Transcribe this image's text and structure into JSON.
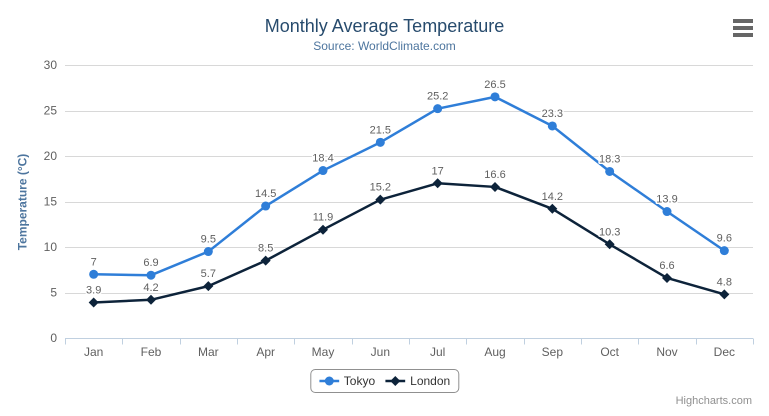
{
  "chart": {
    "title": "Monthly Average Temperature",
    "subtitle": "Source: WorldClimate.com",
    "credits": "Highcharts.com",
    "icons": {
      "context_menu": "hamburger-menu-icon"
    },
    "colors": {
      "title": "#274b6d",
      "subtitle": "#4d759e",
      "axis_title": "#4d759e",
      "axis_labels": "#606060",
      "data_labels": "#606060",
      "grid": "#d8d8d8",
      "axis_line": "#c0d0e0",
      "legend_border": "#909090",
      "legend_text": "#333333",
      "credits_text": "#909090",
      "menu_icon": "#666666",
      "background": "#ffffff"
    }
  },
  "chart_data": {
    "type": "line",
    "title": "Monthly Average Temperature",
    "subtitle": "Source: WorldClimate.com",
    "categories": [
      "Jan",
      "Feb",
      "Mar",
      "Apr",
      "May",
      "Jun",
      "Jul",
      "Aug",
      "Sep",
      "Oct",
      "Nov",
      "Dec"
    ],
    "series": [
      {
        "name": "Tokyo",
        "color": "#2f7ed8",
        "marker": "circle",
        "values": [
          7,
          6.9,
          9.5,
          14.5,
          18.4,
          21.5,
          25.2,
          26.5,
          23.3,
          18.3,
          13.9,
          9.6
        ]
      },
      {
        "name": "London",
        "color": "#0d233a",
        "marker": "diamond",
        "values": [
          3.9,
          4.2,
          5.7,
          8.5,
          11.9,
          15.2,
          17,
          16.6,
          14.2,
          10.3,
          6.6,
          4.8
        ]
      }
    ],
    "xlabel": "",
    "ylabel": "Temperature (°C)",
    "ylim": [
      0,
      30
    ],
    "yticks": [
      0,
      5,
      10,
      15,
      20,
      25,
      30
    ],
    "grid": true,
    "data_labels": true,
    "legend_position": "bottom"
  }
}
